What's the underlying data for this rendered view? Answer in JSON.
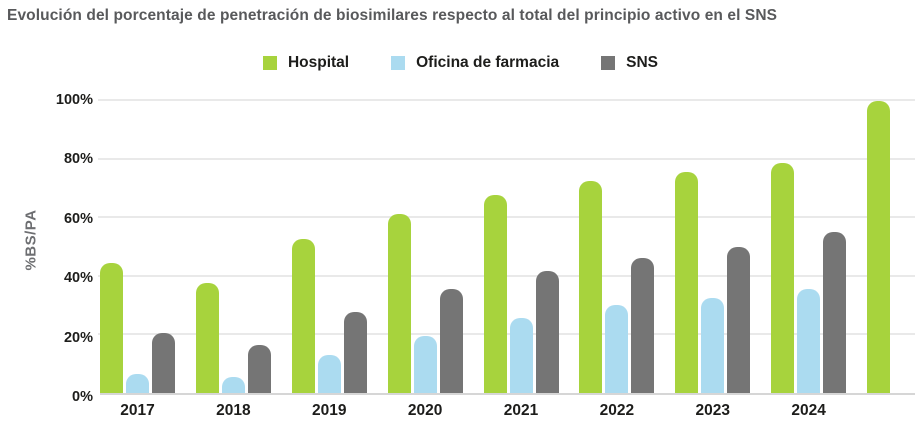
{
  "chart_data": {
    "type": "bar",
    "title": "Evolución del porcentaje de penetración de biosimilares respecto al total del principio activo en el SNS",
    "ylabel": "%BS/PA",
    "categories": [
      "2017",
      "2018",
      "2019",
      "2020",
      "2021",
      "2022",
      "2023",
      "2024",
      ""
    ],
    "series": [
      {
        "name": "Hospital",
        "color": "#a7d33d",
        "values": [
          44.5,
          37.5,
          52.5,
          61,
          67.5,
          72.5,
          75.5,
          78.5,
          99.5
        ]
      },
      {
        "name": "Oficina de farmacia",
        "color": "#abdbf0",
        "values": [
          6.5,
          5.5,
          13,
          19.5,
          25.5,
          30,
          32.5,
          35.5,
          null
        ]
      },
      {
        "name": "SNS",
        "color": "#757575",
        "values": [
          20.5,
          16.5,
          27.5,
          35.5,
          41.5,
          46,
          50,
          55,
          null
        ]
      }
    ],
    "ylim": [
      0,
      100
    ],
    "y_ticks": [
      "0%",
      "20%",
      "40%",
      "60%",
      "80%",
      "100%"
    ],
    "grid": true,
    "legend_position": "top"
  },
  "style": {
    "title_color": "#58595b",
    "axis_text_color": "#1d1d1b",
    "ylabel_color": "#6d6e71",
    "gridline_color": "#e9e9e9",
    "background": "#ffffff"
  }
}
